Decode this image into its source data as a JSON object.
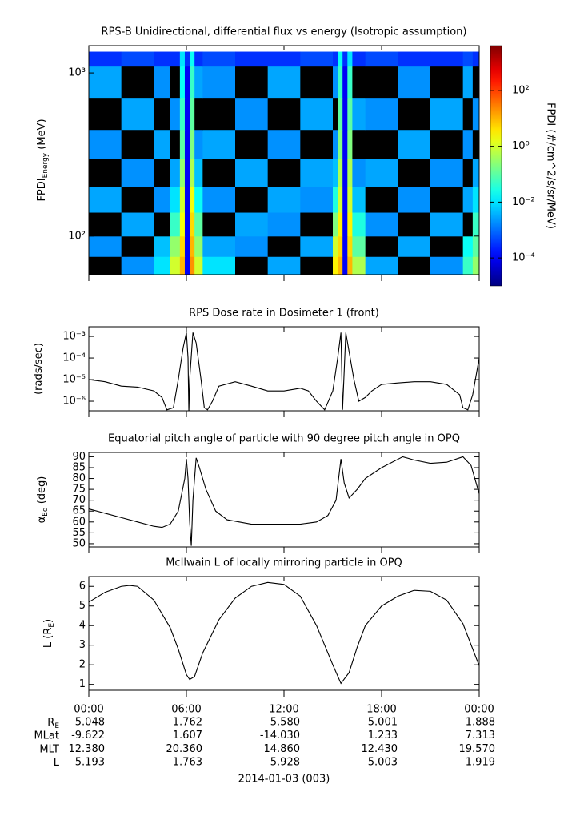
{
  "chart_data": [
    {
      "type": "heatmap",
      "title": "RPS-B  Unidirectional, differential flux vs energy (Isotropic assumption)",
      "ylabel": {
        "main": "FPDI",
        "sub": "Energy",
        "unit": " (MeV)"
      },
      "colorbar_label": "FPDI (#/cm^2/s/sr/MeV)",
      "xlim": [
        0,
        24
      ],
      "xticks": [
        0,
        6,
        12,
        18,
        24
      ],
      "ylim": [
        58,
        1470
      ],
      "ylog": true,
      "yticks": [
        {
          "value": 100,
          "label": "10²"
        },
        {
          "value": 1000,
          "label": "10³"
        }
      ],
      "clim": [
        1e-05,
        4000
      ],
      "clog": true,
      "colormap": "jet",
      "cticks": [
        {
          "value": 0.0001,
          "label": "10⁻⁴"
        },
        {
          "value": 0.01,
          "label": "10⁻²"
        },
        {
          "value": 1,
          "label": "10⁰"
        },
        {
          "value": 100,
          "label": "10²"
        }
      ],
      "x_edges": [
        0,
        2,
        4,
        5,
        5.6,
        5.9,
        6.2,
        6.5,
        7,
        9,
        11,
        13,
        15,
        15.3,
        15.6,
        15.9,
        16.2,
        17,
        19,
        21,
        23,
        23.6,
        24
      ],
      "y_edges": [
        57,
        75,
        100,
        140,
        200,
        300,
        450,
        700,
        1100,
        1350
      ],
      "values": [
        [
          null,
          0.002,
          0.01,
          1,
          10,
          0.0001,
          20,
          1,
          0.01,
          null,
          0.003,
          null,
          3,
          10,
          0.0001,
          10,
          0.5,
          0.003,
          null,
          0.002,
          0.05,
          0.3
        ],
        [
          0.002,
          null,
          0.005,
          0.3,
          5,
          0.0001,
          10,
          0.3,
          0.003,
          0.002,
          null,
          0.003,
          1,
          5,
          0.0001,
          5,
          0.1,
          null,
          0.003,
          null,
          0.02,
          0.1
        ],
        [
          null,
          0.003,
          null,
          0.05,
          2,
          0.0001,
          5,
          0.1,
          null,
          0.003,
          0.002,
          null,
          0.2,
          3,
          0.0001,
          3,
          0.03,
          0.002,
          null,
          0.003,
          null,
          0.05
        ],
        [
          0.003,
          null,
          0.002,
          0.01,
          1,
          0.0001,
          2,
          0.02,
          0.002,
          null,
          0.003,
          0.002,
          0.03,
          1,
          0.0001,
          1,
          0.005,
          null,
          0.002,
          null,
          0.003,
          0.01
        ],
        [
          null,
          0.002,
          null,
          0.003,
          0.3,
          0.0001,
          0.5,
          0.005,
          null,
          0.003,
          null,
          0.003,
          0.005,
          0.5,
          0.0001,
          0.5,
          0.002,
          0.003,
          null,
          0.002,
          null,
          0.003
        ],
        [
          0.002,
          null,
          0.003,
          null,
          0.1,
          0.0001,
          0.2,
          0.002,
          0.003,
          null,
          0.002,
          null,
          0.002,
          0.2,
          0.0001,
          0.2,
          null,
          null,
          0.003,
          null,
          0.002,
          null
        ],
        [
          null,
          0.003,
          null,
          0.002,
          0.05,
          0.0001,
          0.1,
          null,
          null,
          0.002,
          null,
          0.003,
          null,
          0.1,
          0.0001,
          0.1,
          0.003,
          0.002,
          null,
          0.003,
          null,
          0.002
        ],
        [
          0.003,
          null,
          0.002,
          null,
          0.02,
          0.0001,
          0.05,
          0.003,
          0.002,
          null,
          0.003,
          null,
          0.002,
          0.05,
          0.0001,
          0.05,
          null,
          null,
          0.002,
          null,
          0.003,
          null
        ],
        [
          0.0003,
          0.0005,
          0.0003,
          0.0003,
          0.01,
          0.0003,
          0.02,
          0.0003,
          0.0005,
          0.0003,
          0.0003,
          0.0005,
          0.0003,
          0.02,
          0.0003,
          0.01,
          0.0003,
          0.0005,
          0.0003,
          0.0003,
          0.0005,
          0.0003
        ]
      ]
    },
    {
      "type": "line",
      "title": "RPS  Dose rate in Dosimeter 1 (front)",
      "ylabel": {
        "main": "(rads/sec)"
      },
      "xlim": [
        0,
        24
      ],
      "xticks": [
        0,
        6,
        12,
        18,
        24
      ],
      "ylim": [
        3.6e-07,
        0.0028
      ],
      "ylog": true,
      "yticks": [
        {
          "value": 1e-06,
          "label": "10⁻⁶"
        },
        {
          "value": 1e-05,
          "label": "10⁻⁵"
        },
        {
          "value": 0.0001,
          "label": "10⁻⁴"
        },
        {
          "value": 0.001,
          "label": "10⁻³"
        }
      ],
      "color": "#000000",
      "x": [
        0,
        1,
        2,
        3,
        4,
        4.5,
        4.8,
        5.2,
        5.5,
        5.8,
        6.0,
        6.1,
        6.15,
        6.2,
        6.4,
        6.6,
        6.9,
        7.1,
        7.3,
        7.6,
        8,
        9,
        10,
        11,
        12,
        13,
        13.5,
        14,
        14.5,
        15,
        15.3,
        15.5,
        15.6,
        15.8,
        16,
        16.3,
        16.6,
        17,
        17.4,
        18,
        19,
        20,
        21,
        22,
        22.8,
        23,
        23.3,
        23.6,
        24
      ],
      "values": [
        1e-05,
        8e-06,
        5e-06,
        4.5e-06,
        3e-06,
        1.5e-06,
        4e-07,
        5e-07,
        1e-05,
        0.0003,
        0.0015,
        0.0001,
        3e-07,
        1e-05,
        0.0015,
        0.0005,
        1e-05,
        5e-07,
        4e-07,
        1e-06,
        5e-06,
        8e-06,
        5e-06,
        3e-06,
        3e-06,
        4e-06,
        3e-06,
        1e-06,
        4e-07,
        3e-06,
        0.0001,
        0.0015,
        4e-07,
        0.0015,
        0.0002,
        1e-05,
        1e-06,
        1.5e-06,
        3e-06,
        6e-06,
        7e-06,
        8e-06,
        8e-06,
        6e-06,
        2e-06,
        5e-07,
        4e-07,
        2e-06,
        0.0001
      ]
    },
    {
      "type": "line",
      "title": "Equatorial pitch angle of particle with 90 degree pitch angle in OPQ",
      "ylabel": {
        "main": "α",
        "sub": "Eq",
        "unit": " (deg)"
      },
      "xlim": [
        0,
        24
      ],
      "xticks": [
        0,
        6,
        12,
        18,
        24
      ],
      "ylim": [
        48.5,
        92
      ],
      "yticks": [
        50,
        55,
        60,
        65,
        70,
        75,
        80,
        85,
        90
      ],
      "color": "#000000",
      "x": [
        0,
        1,
        2,
        3,
        4,
        4.5,
        5,
        5.5,
        5.9,
        6.0,
        6.1,
        6.2,
        6.3,
        6.4,
        6.6,
        6.8,
        7.2,
        7.8,
        8.5,
        10,
        12,
        13,
        14,
        14.7,
        15.2,
        15.5,
        15.7,
        16,
        16.5,
        17,
        18,
        19.3,
        20,
        21,
        22,
        23,
        23.5,
        24
      ],
      "values": [
        66,
        64,
        62,
        60,
        58,
        57.5,
        59,
        65,
        80,
        89,
        80,
        60,
        49,
        70,
        89.5,
        85,
        75,
        65,
        61,
        59,
        59,
        59,
        60,
        63,
        70,
        89,
        78,
        71,
        75,
        80,
        85,
        90,
        88.5,
        87,
        87.5,
        90,
        86,
        73
      ]
    },
    {
      "type": "line",
      "title": "McIlwain L of locally mirroring particle in OPQ",
      "ylabel": {
        "main": "L (R",
        "sub": "E",
        "unit": ")"
      },
      "xlim": [
        0,
        24
      ],
      "xticks": [
        {
          "value": 0,
          "label": "00:00"
        },
        {
          "value": 6,
          "label": "06:00"
        },
        {
          "value": 12,
          "label": "12:00"
        },
        {
          "value": 18,
          "label": "18:00"
        },
        {
          "value": 24,
          "label": "00:00"
        }
      ],
      "ylim": [
        0.7,
        6.5
      ],
      "yticks": [
        1,
        2,
        3,
        4,
        5,
        6
      ],
      "color": "#000000",
      "x": [
        0,
        1,
        2,
        2.5,
        3,
        4,
        5,
        5.5,
        6,
        6.2,
        6.5,
        7,
        8,
        9,
        10,
        11,
        12,
        13,
        14,
        15,
        15.5,
        16,
        16.5,
        17,
        18,
        19,
        20,
        21,
        22,
        23,
        24
      ],
      "values": [
        5.2,
        5.7,
        6.0,
        6.05,
        6.0,
        5.3,
        3.9,
        2.8,
        1.5,
        1.25,
        1.4,
        2.6,
        4.3,
        5.4,
        6.0,
        6.2,
        6.1,
        5.5,
        4.0,
        2.0,
        1.05,
        1.6,
        2.9,
        4.0,
        5.0,
        5.5,
        5.8,
        5.75,
        5.3,
        4.1,
        1.95
      ]
    }
  ],
  "ephemeris": {
    "rows": [
      {
        "label": {
          "main": "R",
          "sub": "E"
        },
        "values": [
          "5.048",
          "1.762",
          "5.580",
          "5.001",
          "1.888"
        ]
      },
      {
        "label": {
          "main": "MLat"
        },
        "values": [
          "-9.622",
          "1.607",
          "-14.030",
          "1.233",
          "7.313"
        ]
      },
      {
        "label": {
          "main": "MLT"
        },
        "values": [
          "12.380",
          "20.360",
          "14.860",
          "12.430",
          "19.570"
        ]
      },
      {
        "label": {
          "main": "L"
        },
        "values": [
          "5.193",
          "1.763",
          "5.928",
          "5.003",
          "1.919"
        ]
      }
    ]
  },
  "date_label": "2014-01-03 (003)"
}
